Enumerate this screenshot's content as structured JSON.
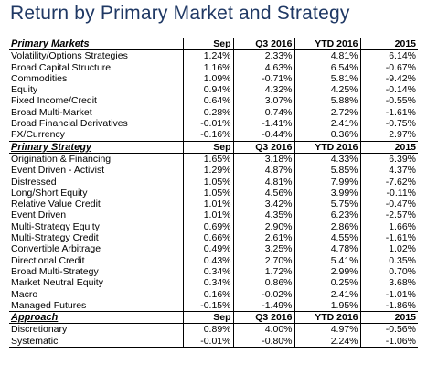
{
  "title": "Return by Primary Market and Strategy",
  "sections": [
    {
      "heading": "Primary Markets",
      "columns": [
        "Sep",
        "Q3 2016",
        "YTD 2016",
        "2015"
      ],
      "rows": [
        {
          "name": "Volatility/Options Strategies",
          "sep": "1.24%",
          "q3": "2.33%",
          "ytd": "4.81%",
          "y2015": "6.14%"
        },
        {
          "name": "Broad Capital Structure",
          "sep": "1.16%",
          "q3": "4.63%",
          "ytd": "6.54%",
          "y2015": "-0.67%"
        },
        {
          "name": "Commodities",
          "sep": "1.09%",
          "q3": "-0.71%",
          "ytd": "5.81%",
          "y2015": "-9.42%"
        },
        {
          "name": "Equity",
          "sep": "0.94%",
          "q3": "4.32%",
          "ytd": "4.25%",
          "y2015": "-0.14%"
        },
        {
          "name": "Fixed Income/Credit",
          "sep": "0.64%",
          "q3": "3.07%",
          "ytd": "5.88%",
          "y2015": "-0.55%"
        },
        {
          "name": "Broad Multi-Market",
          "sep": "0.28%",
          "q3": "0.74%",
          "ytd": "2.72%",
          "y2015": "-1.61%"
        },
        {
          "name": "Broad Financial Derivatives",
          "sep": "-0.01%",
          "q3": "-1.41%",
          "ytd": "2.41%",
          "y2015": "-0.75%"
        },
        {
          "name": "FX/Currency",
          "sep": "-0.16%",
          "q3": "-0.44%",
          "ytd": "0.36%",
          "y2015": "2.97%"
        }
      ]
    },
    {
      "heading": "Primary Strategy",
      "columns": [
        "Sep",
        "Q3 2016",
        "YTD 2016",
        "2015"
      ],
      "rows": [
        {
          "name": "Origination & Financing",
          "sep": "1.65%",
          "q3": "3.18%",
          "ytd": "4.33%",
          "y2015": "6.39%"
        },
        {
          "name": "Event Driven - Activist",
          "sep": "1.29%",
          "q3": "4.87%",
          "ytd": "5.85%",
          "y2015": "4.37%"
        },
        {
          "name": "Distressed",
          "sep": "1.05%",
          "q3": "4.81%",
          "ytd": "7.99%",
          "y2015": "-7.62%"
        },
        {
          "name": "Long/Short Equity",
          "sep": "1.05%",
          "q3": "4.56%",
          "ytd": "3.99%",
          "y2015": "-0.11%"
        },
        {
          "name": "Relative Value Credit",
          "sep": "1.01%",
          "q3": "3.42%",
          "ytd": "5.75%",
          "y2015": "-0.47%"
        },
        {
          "name": "Event Driven",
          "sep": "1.01%",
          "q3": "4.35%",
          "ytd": "6.23%",
          "y2015": "-2.57%"
        },
        {
          "name": "Multi-Strategy Equity",
          "sep": "0.69%",
          "q3": "2.90%",
          "ytd": "2.86%",
          "y2015": "1.66%"
        },
        {
          "name": "Multi-Strategy Credit",
          "sep": "0.66%",
          "q3": "2.61%",
          "ytd": "4.55%",
          "y2015": "-1.61%"
        },
        {
          "name": "Convertible Arbitrage",
          "sep": "0.49%",
          "q3": "3.25%",
          "ytd": "4.78%",
          "y2015": "1.02%"
        },
        {
          "name": "Directional Credit",
          "sep": "0.43%",
          "q3": "2.70%",
          "ytd": "5.41%",
          "y2015": "0.35%"
        },
        {
          "name": "Broad Multi-Strategy",
          "sep": "0.34%",
          "q3": "1.72%",
          "ytd": "2.99%",
          "y2015": "0.70%"
        },
        {
          "name": "Market Neutral Equity",
          "sep": "0.34%",
          "q3": "0.86%",
          "ytd": "0.25%",
          "y2015": "3.68%"
        },
        {
          "name": "Macro",
          "sep": "0.16%",
          "q3": "-0.02%",
          "ytd": "2.41%",
          "y2015": "-1.01%"
        },
        {
          "name": "Managed Futures",
          "sep": "-0.15%",
          "q3": "-1.49%",
          "ytd": "1.95%",
          "y2015": "-1.86%"
        }
      ]
    },
    {
      "heading": "Approach",
      "columns": [
        "Sep",
        "Q3 2016",
        "YTD 2016",
        "2015"
      ],
      "rows": [
        {
          "name": "Discretionary",
          "sep": "0.89%",
          "q3": "4.00%",
          "ytd": "4.97%",
          "y2015": "-0.56%"
        },
        {
          "name": "Systematic",
          "sep": "-0.01%",
          "q3": "-0.80%",
          "ytd": "2.24%",
          "y2015": "-1.06%"
        }
      ]
    }
  ],
  "colors": {
    "title": "#1f3864",
    "text": "#000000",
    "rules": "#000000"
  }
}
